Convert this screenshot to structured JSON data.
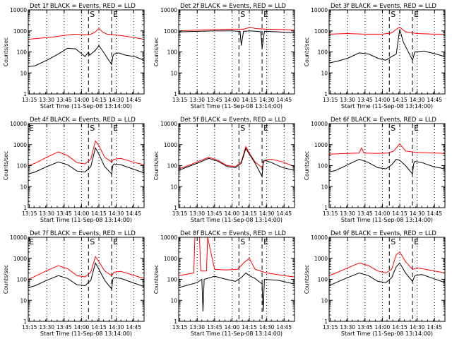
{
  "layout_note_free": true,
  "colors": {
    "events": "#000000",
    "lld": "#ff0000",
    "frame": "#000000",
    "background": "#ffffff"
  },
  "common": {
    "xtick_labels": [
      "13:15",
      "13:30",
      "13:45",
      "14:00",
      "14:15",
      "14:30",
      "14:45"
    ],
    "ytick_labels": [
      "1",
      "10",
      "100",
      "1000",
      "10000"
    ],
    "ylabel": "Counts/sec",
    "xlabel": "Start Time (11-Sep-08 13:14:00)",
    "marker_S": "S",
    "marker_E": "E"
  },
  "chart_data": [
    {
      "type": "line",
      "title": "Det 1f BLACK = Events, RED = LLD",
      "marker_left": "",
      "xlabel": "Start Time (11-Sep-08 13:14:00)",
      "ylabel": "Counts/sec",
      "ylim": [
        1,
        10000
      ],
      "yscale": "log",
      "xlim": [
        "13:14",
        "14:54"
      ],
      "dotted_times": [
        "13:30",
        "13:45",
        "14:00",
        "14:15",
        "14:30",
        "14:45"
      ],
      "dashed_times": [
        "14:06",
        "14:26"
      ],
      "series": [
        {
          "name": "LLD",
          "color": "#ff0000",
          "x": [
            "13:14",
            "13:24",
            "13:34",
            "13:44",
            "13:54",
            "14:02",
            "14:08",
            "14:12",
            "14:15",
            "14:18",
            "14:22",
            "14:28",
            "14:34",
            "14:44",
            "14:54"
          ],
          "values": [
            400,
            450,
            500,
            600,
            700,
            650,
            700,
            900,
            1300,
            900,
            700,
            650,
            600,
            500,
            400
          ]
        },
        {
          "name": "Events",
          "color": "#000000",
          "x": [
            "13:14",
            "13:20",
            "13:30",
            "13:40",
            "13:48",
            "13:55",
            "14:03",
            "14:06",
            "14:07",
            "14:12",
            "14:15",
            "14:20",
            "14:26",
            "14:27",
            "14:28",
            "14:32",
            "14:38",
            "14:46",
            "14:54"
          ],
          "values": [
            20,
            22,
            40,
            80,
            150,
            140,
            60,
            100,
            70,
            120,
            200,
            80,
            25,
            60,
            80,
            90,
            70,
            60,
            40
          ]
        }
      ]
    },
    {
      "type": "line",
      "title": "Det 2f BLACK = Events, RED = LLD",
      "marker_left": "",
      "xlabel": "Start Time (11-Sep-08 13:14:00)",
      "ylabel": "Counts/sec",
      "ylim": [
        1,
        10000
      ],
      "yscale": "log",
      "xlim": [
        "13:14",
        "14:54"
      ],
      "dotted_times": [
        "13:30",
        "13:45",
        "14:00",
        "14:15",
        "14:30",
        "14:45"
      ],
      "dashed_times": [
        "14:06",
        "14:26"
      ],
      "series": [
        {
          "name": "LLD",
          "color": "#ff0000",
          "x": [
            "13:14",
            "13:30",
            "13:45",
            "14:00",
            "14:10",
            "14:16",
            "14:20",
            "14:30",
            "14:45",
            "14:54"
          ],
          "values": [
            1000,
            1100,
            1150,
            1200,
            1200,
            1500,
            1300,
            1200,
            1150,
            1100
          ]
        },
        {
          "name": "Events",
          "color": "#000000",
          "x": [
            "13:14",
            "13:30",
            "13:45",
            "14:00",
            "14:07",
            "14:08",
            "14:10",
            "14:15",
            "14:22",
            "14:25",
            "14:26",
            "14:28",
            "14:40",
            "14:54"
          ],
          "values": [
            900,
            950,
            1000,
            1000,
            950,
            200,
            950,
            1000,
            950,
            900,
            150,
            950,
            900,
            800
          ]
        }
      ]
    },
    {
      "type": "line",
      "title": "Det 3f BLACK = Events, RED = LLD",
      "marker_left": "",
      "xlabel": "Start Time (11-Sep-08 13:14:00)",
      "ylabel": "Counts/sec",
      "ylim": [
        1,
        10000
      ],
      "yscale": "log",
      "xlim": [
        "13:14",
        "14:54"
      ],
      "dotted_times": [
        "13:30",
        "13:45",
        "14:00",
        "14:15",
        "14:30",
        "14:45"
      ],
      "dashed_times": [
        "14:06",
        "14:26"
      ],
      "series": [
        {
          "name": "LLD",
          "color": "#ff0000",
          "x": [
            "13:14",
            "13:30",
            "13:45",
            "14:00",
            "14:08",
            "14:12",
            "14:15",
            "14:20",
            "14:30",
            "14:45",
            "14:54"
          ],
          "values": [
            700,
            750,
            700,
            700,
            800,
            1200,
            1500,
            900,
            750,
            700,
            700
          ]
        },
        {
          "name": "Events",
          "color": "#000000",
          "x": [
            "13:14",
            "13:20",
            "13:30",
            "13:40",
            "13:48",
            "13:56",
            "14:03",
            "14:08",
            "14:12",
            "14:15",
            "14:18",
            "14:26",
            "14:28",
            "14:36",
            "14:46",
            "14:54"
          ],
          "values": [
            30,
            35,
            50,
            90,
            80,
            50,
            40,
            60,
            80,
            1200,
            300,
            40,
            100,
            110,
            80,
            60
          ]
        }
      ]
    },
    {
      "type": "line",
      "title": "Det 4f BLACK = Events, RED = LLD",
      "marker_left": "E",
      "xlabel": "Start Time (11-Sep-08 13:14:00)",
      "ylabel": "Counts/sec",
      "ylim": [
        1,
        10000
      ],
      "yscale": "log",
      "xlim": [
        "13:14",
        "14:54"
      ],
      "dotted_times": [
        "13:30",
        "13:45",
        "14:00",
        "14:15",
        "14:30",
        "14:45"
      ],
      "dashed_times": [
        "14:06",
        "14:26"
      ],
      "series": [
        {
          "name": "LLD",
          "color": "#ff0000",
          "x": [
            "13:14",
            "13:20",
            "13:30",
            "13:40",
            "13:48",
            "13:56",
            "14:03",
            "14:08",
            "14:12",
            "14:15",
            "14:20",
            "14:26",
            "14:28",
            "14:34",
            "14:44",
            "14:54"
          ],
          "values": [
            100,
            130,
            250,
            450,
            300,
            140,
            120,
            200,
            1500,
            900,
            250,
            150,
            200,
            220,
            150,
            110
          ]
        },
        {
          "name": "Events",
          "color": "#000000",
          "x": [
            "13:14",
            "13:20",
            "13:30",
            "13:40",
            "13:48",
            "13:56",
            "14:03",
            "14:08",
            "14:12",
            "14:15",
            "14:20",
            "14:26",
            "14:27",
            "14:28",
            "14:34",
            "14:44",
            "14:54"
          ],
          "values": [
            40,
            50,
            90,
            150,
            110,
            55,
            50,
            90,
            700,
            350,
            90,
            40,
            100,
            120,
            110,
            70,
            45
          ]
        }
      ]
    },
    {
      "type": "line",
      "title": "Det 5f BLACK = Events, RED = LLD",
      "marker_left": "",
      "xlabel": "Start Time (11-Sep-08 13:14:00)",
      "ylabel": "Counts/sec",
      "ylim": [
        1,
        10000
      ],
      "yscale": "log",
      "xlim": [
        "13:14",
        "14:54"
      ],
      "dotted_times": [
        "13:30",
        "13:45",
        "14:00",
        "14:15",
        "14:30",
        "14:45"
      ],
      "dashed_times": [
        "14:06",
        "14:26"
      ],
      "series": [
        {
          "name": "LLD",
          "color": "#ff0000",
          "x": [
            "13:14",
            "13:20",
            "13:30",
            "13:40",
            "13:48",
            "13:56",
            "14:03",
            "14:08",
            "14:12",
            "14:15",
            "14:20",
            "14:26",
            "14:28",
            "14:34",
            "14:44",
            "14:54"
          ],
          "values": [
            70,
            90,
            150,
            250,
            180,
            100,
            90,
            150,
            800,
            400,
            150,
            80,
            180,
            200,
            150,
            90
          ]
        },
        {
          "name": "Events",
          "color": "#000000",
          "x": [
            "13:14",
            "13:20",
            "13:30",
            "13:40",
            "13:48",
            "13:56",
            "14:03",
            "14:08",
            "14:12",
            "14:15",
            "14:20",
            "14:26",
            "14:27",
            "14:28",
            "14:34",
            "14:44",
            "14:54"
          ],
          "values": [
            60,
            80,
            130,
            220,
            160,
            90,
            80,
            130,
            650,
            350,
            130,
            30,
            160,
            180,
            140,
            80,
            60
          ]
        }
      ]
    },
    {
      "type": "line",
      "title": "Det 6f BLACK = Events, RED = LLD",
      "marker_left": "",
      "xlabel": "Start Time (11-Sep-08 13:14:00)",
      "ylabel": "Counts/sec",
      "ylim": [
        1,
        10000
      ],
      "yscale": "log",
      "xlim": [
        "13:14",
        "14:54"
      ],
      "dotted_times": [
        "13:30",
        "13:45",
        "14:00",
        "14:15",
        "14:30",
        "14:45"
      ],
      "dashed_times": [
        "14:06",
        "14:26"
      ],
      "series": [
        {
          "name": "LLD",
          "color": "#ff0000",
          "x": [
            "13:14",
            "13:30",
            "13:40",
            "13:42",
            "13:44",
            "13:55",
            "14:05",
            "14:10",
            "14:15",
            "14:20",
            "14:30",
            "14:45",
            "14:54"
          ],
          "values": [
            350,
            380,
            400,
            700,
            400,
            380,
            400,
            500,
            1100,
            500,
            420,
            400,
            380
          ]
        },
        {
          "name": "Events",
          "color": "#000000",
          "x": [
            "13:14",
            "13:20",
            "13:30",
            "13:40",
            "13:48",
            "13:56",
            "14:03",
            "14:08",
            "14:12",
            "14:15",
            "14:20",
            "14:26",
            "14:27",
            "14:28",
            "14:34",
            "14:44",
            "14:54"
          ],
          "values": [
            50,
            60,
            110,
            200,
            140,
            80,
            70,
            110,
            200,
            180,
            100,
            40,
            120,
            160,
            140,
            90,
            70
          ]
        }
      ]
    },
    {
      "type": "line",
      "title": "Det 7f BLACK = Events, RED = LLD",
      "marker_left": "E",
      "xlabel": "Start Time (11-Sep-08 13:14:00)",
      "ylabel": "Counts/sec",
      "ylim": [
        1,
        10000
      ],
      "yscale": "log",
      "xlim": [
        "13:14",
        "14:54"
      ],
      "dotted_times": [
        "13:30",
        "13:45",
        "14:00",
        "14:15",
        "14:30",
        "14:45"
      ],
      "dashed_times": [
        "14:06",
        "14:26"
      ],
      "series": [
        {
          "name": "LLD",
          "color": "#ff0000",
          "x": [
            "13:14",
            "13:20",
            "13:30",
            "13:40",
            "13:48",
            "13:56",
            "14:03",
            "14:08",
            "14:12",
            "14:15",
            "14:20",
            "14:26",
            "14:28",
            "14:34",
            "14:44",
            "14:54"
          ],
          "values": [
            100,
            140,
            260,
            450,
            320,
            150,
            130,
            220,
            1200,
            700,
            250,
            150,
            220,
            240,
            160,
            110
          ]
        },
        {
          "name": "Events",
          "color": "#000000",
          "x": [
            "13:14",
            "13:20",
            "13:30",
            "13:40",
            "13:48",
            "13:56",
            "14:03",
            "14:08",
            "14:12",
            "14:15",
            "14:20",
            "14:26",
            "14:27",
            "14:28",
            "14:34",
            "14:44",
            "14:54"
          ],
          "values": [
            40,
            50,
            90,
            150,
            110,
            55,
            50,
            90,
            600,
            300,
            90,
            35,
            100,
            120,
            110,
            70,
            45
          ]
        }
      ]
    },
    {
      "type": "line",
      "title": "Det 8f BLACK = Events, RED = LLD",
      "marker_left": "",
      "xlabel": "Start Time (11-Sep-08 13:14:00)",
      "ylabel": "Counts/sec",
      "ylim": [
        1,
        10000
      ],
      "yscale": "log",
      "xlim": [
        "13:14",
        "14:54"
      ],
      "dotted_times": [
        "13:30",
        "13:45",
        "14:00",
        "14:15",
        "14:30",
        "14:45"
      ],
      "dashed_times": [
        "14:06",
        "14:26"
      ],
      "series": [
        {
          "name": "LLD",
          "color": "#ff0000",
          "x": [
            "13:14",
            "13:20",
            "13:27",
            "13:28",
            "13:32",
            "13:33",
            "13:38",
            "13:39",
            "13:45",
            "13:55",
            "14:05",
            "14:10",
            "14:15",
            "14:20",
            "14:30",
            "14:45",
            "14:54"
          ],
          "values": [
            150,
            170,
            200,
            10000,
            10000,
            250,
            250,
            10000,
            300,
            280,
            300,
            600,
            1000,
            300,
            200,
            150,
            130
          ]
        },
        {
          "name": "Events",
          "color": "#000000",
          "x": [
            "13:14",
            "13:20",
            "13:30",
            "13:34",
            "13:35",
            "13:36",
            "13:45",
            "13:55",
            "14:03",
            "14:08",
            "14:12",
            "14:15",
            "14:20",
            "14:26",
            "14:27",
            "14:28",
            "14:40",
            "14:54"
          ],
          "values": [
            40,
            50,
            70,
            100,
            3,
            100,
            140,
            100,
            80,
            120,
            200,
            150,
            110,
            60,
            3,
            100,
            90,
            60
          ]
        }
      ]
    },
    {
      "type": "line",
      "title": "Det 9f BLACK = Events, RED = LLD",
      "marker_left": "",
      "xlabel": "Start Time (11-Sep-08 13:14:00)",
      "ylabel": "Counts/sec",
      "ylim": [
        1,
        10000
      ],
      "yscale": "log",
      "xlim": [
        "13:14",
        "14:54"
      ],
      "dotted_times": [
        "13:30",
        "13:45",
        "14:00",
        "14:15",
        "14:30",
        "14:45"
      ],
      "dashed_times": [
        "14:06",
        "14:26"
      ],
      "series": [
        {
          "name": "LLD",
          "color": "#ff0000",
          "x": [
            "13:14",
            "13:20",
            "13:30",
            "13:40",
            "13:48",
            "13:56",
            "14:03",
            "14:08",
            "14:12",
            "14:15",
            "14:20",
            "14:26",
            "14:30",
            "14:40",
            "14:54"
          ],
          "values": [
            150,
            200,
            350,
            600,
            450,
            250,
            200,
            300,
            1500,
            2000,
            700,
            300,
            350,
            280,
            200
          ]
        },
        {
          "name": "Events",
          "color": "#000000",
          "x": [
            "13:14",
            "13:20",
            "13:30",
            "13:40",
            "13:48",
            "13:56",
            "14:03",
            "14:08",
            "14:12",
            "14:15",
            "14:20",
            "14:26",
            "14:28",
            "14:34",
            "14:44",
            "14:54"
          ],
          "values": [
            50,
            70,
            120,
            200,
            150,
            80,
            70,
            120,
            400,
            600,
            200,
            80,
            150,
            170,
            110,
            70
          ]
        }
      ]
    }
  ]
}
